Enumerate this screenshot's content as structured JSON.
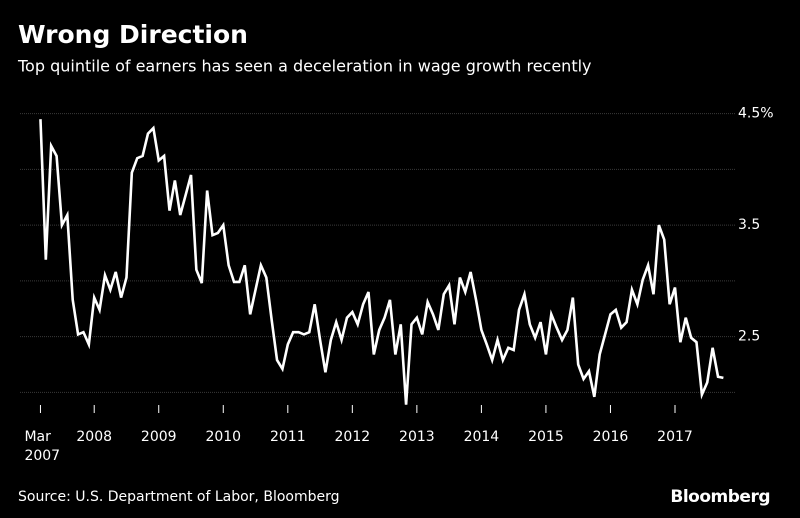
{
  "chart_data": {
    "type": "line",
    "title": "Wrong Direction",
    "subtitle": "Top quintile of earners has seen a deceleration in wage growth recently",
    "source": "Source: U.S. Department of Labor, Bloomberg",
    "logo": "Bloomberg",
    "x": [
      2007.167,
      2007.25,
      2007.333,
      2007.417,
      2007.5,
      2007.583,
      2007.667,
      2007.75,
      2007.833,
      2007.917,
      2008.0,
      2008.083,
      2008.167,
      2008.25,
      2008.333,
      2008.417,
      2008.5,
      2008.583,
      2008.667,
      2008.75,
      2008.833,
      2008.917,
      2009.0,
      2009.083,
      2009.167,
      2009.25,
      2009.333,
      2009.417,
      2009.5,
      2009.583,
      2009.667,
      2009.75,
      2009.833,
      2009.917,
      2010.0,
      2010.083,
      2010.167,
      2010.25,
      2010.333,
      2010.417,
      2010.5,
      2010.583,
      2010.667,
      2010.75,
      2010.833,
      2010.917,
      2011.0,
      2011.083,
      2011.167,
      2011.25,
      2011.333,
      2011.417,
      2011.5,
      2011.583,
      2011.667,
      2011.75,
      2011.833,
      2011.917,
      2012.0,
      2012.083,
      2012.167,
      2012.25,
      2012.333,
      2012.417,
      2012.5,
      2012.583,
      2012.667,
      2012.75,
      2012.833,
      2012.917,
      2013.0,
      2013.083,
      2013.167,
      2013.25,
      2013.333,
      2013.417,
      2013.5,
      2013.583,
      2013.667,
      2013.75,
      2013.833,
      2013.917,
      2014.0,
      2014.083,
      2014.167,
      2014.25,
      2014.333,
      2014.417,
      2014.5,
      2014.583,
      2014.667,
      2014.75,
      2014.833,
      2014.917,
      2015.0,
      2015.083,
      2015.167,
      2015.25,
      2015.333,
      2015.417,
      2015.5,
      2015.583,
      2015.667,
      2015.75,
      2015.833,
      2015.917,
      2016.0,
      2016.083,
      2016.167,
      2016.25,
      2016.333,
      2016.417,
      2016.5,
      2016.583,
      2016.667,
      2016.75,
      2016.833,
      2016.917,
      2017.0,
      2017.083,
      2017.167,
      2017.25,
      2017.333,
      2017.417,
      2017.5,
      2017.583,
      2017.667,
      2017.75
    ],
    "series": [
      {
        "color": "#ffffff",
        "values": [
          4.45,
          3.19,
          4.21,
          4.12,
          3.5,
          3.59,
          2.83,
          2.52,
          2.54,
          2.43,
          2.85,
          2.74,
          3.05,
          2.92,
          3.08,
          2.85,
          3.03,
          3.97,
          4.1,
          4.12,
          4.32,
          4.37,
          4.08,
          4.12,
          3.63,
          3.9,
          3.59,
          3.77,
          3.95,
          3.1,
          2.98,
          3.81,
          3.41,
          3.43,
          3.5,
          3.14,
          2.99,
          2.99,
          3.14,
          2.7,
          2.92,
          3.14,
          3.03,
          2.65,
          2.29,
          2.21,
          2.43,
          2.54,
          2.54,
          2.52,
          2.54,
          2.79,
          2.47,
          2.18,
          2.47,
          2.63,
          2.47,
          2.67,
          2.72,
          2.61,
          2.79,
          2.9,
          2.34,
          2.56,
          2.67,
          2.83,
          2.34,
          2.61,
          1.89,
          2.61,
          2.67,
          2.52,
          2.81,
          2.7,
          2.56,
          2.88,
          2.96,
          2.61,
          3.03,
          2.9,
          3.08,
          2.83,
          2.56,
          2.43,
          2.29,
          2.47,
          2.29,
          2.4,
          2.38,
          2.74,
          2.88,
          2.61,
          2.49,
          2.63,
          2.34,
          2.7,
          2.58,
          2.47,
          2.56,
          2.85,
          2.25,
          2.12,
          2.19,
          1.96,
          2.34,
          2.52,
          2.7,
          2.74,
          2.58,
          2.63,
          2.92,
          2.79,
          3.01,
          3.14,
          2.88,
          3.5,
          3.37,
          2.79,
          2.94,
          2.45,
          2.67,
          2.49,
          2.45,
          1.98,
          2.09,
          2.4,
          2.14,
          2.13
        ]
      }
    ],
    "xlim": [
      2006.85,
      2017.93
    ],
    "xticks": [
      {
        "value": 2007.167,
        "label": "Mar 2007"
      },
      2008,
      2009,
      2010,
      2011,
      2012,
      2013,
      2014,
      2015,
      2016,
      2017
    ],
    "ylim": [
      1.86,
      4.55
    ],
    "yticks": [
      {
        "value": 2,
        "label": null
      },
      {
        "value": 2.5,
        "label": "2.5"
      },
      {
        "value": 3,
        "label": null
      },
      {
        "value": 3.5,
        "label": "3.5"
      },
      {
        "value": 4,
        "label": null
      },
      {
        "value": 4.5,
        "label": "4.5%"
      }
    ],
    "grid": true
  }
}
